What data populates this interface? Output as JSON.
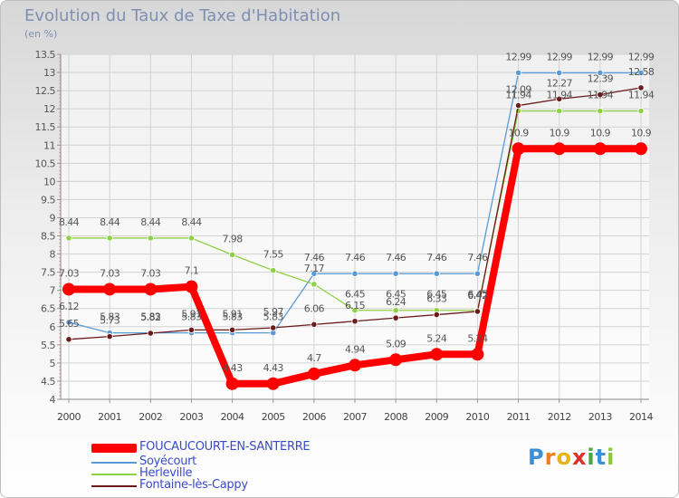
{
  "header": {
    "title": "Evolution du Taux de Taxe d'Habitation",
    "unit": "(en %)"
  },
  "chart_data": {
    "type": "line",
    "x": [
      "2000",
      "2001",
      "2002",
      "2003",
      "2004",
      "2005",
      "2006",
      "2007",
      "2008",
      "2009",
      "2010",
      "2011",
      "2012",
      "2013",
      "2014"
    ],
    "ylim": [
      4,
      13.5
    ],
    "yticks": [
      "4",
      "4.5",
      "5",
      "5.5",
      "6",
      "6.5",
      "7",
      "7.5",
      "8",
      "8.5",
      "9",
      "9.5",
      "10",
      "10.5",
      "11",
      "11.5",
      "12",
      "12.5",
      "13",
      "13.5"
    ],
    "grid": true,
    "legend_position": "bottom",
    "series": [
      {
        "name": "FOUCAUCOURT-EN-SANTERRE",
        "color": "#ff0000",
        "values": [
          7.03,
          7.03,
          7.03,
          7.1,
          4.43,
          4.43,
          4.7,
          4.94,
          5.09,
          5.24,
          5.24,
          10.9,
          10.9,
          10.9,
          10.9
        ],
        "labels": [
          "7.03",
          "7.03",
          "7.03",
          "7.1",
          "4.43",
          "4.43",
          "4.7",
          "4.94",
          "5.09",
          "5.24",
          "5.24",
          "10.9",
          "10.9",
          "10.9",
          "10.9"
        ]
      },
      {
        "name": "Soyécourt",
        "color": "#5b9bd5",
        "values": [
          6.12,
          5.83,
          5.83,
          5.83,
          5.83,
          5.83,
          7.46,
          7.46,
          7.46,
          7.46,
          7.46,
          12.99,
          12.99,
          12.99,
          12.99
        ],
        "labels": [
          "6.12",
          "5.83",
          "5.83",
          "5.83",
          "5.83",
          "5.83",
          "7.46",
          "7.46",
          "7.46",
          "7.46",
          "7.46",
          "12.99",
          "12.99",
          "12.99",
          "12.99"
        ]
      },
      {
        "name": "Herleville",
        "color": "#8ed144",
        "values": [
          8.44,
          8.44,
          8.44,
          8.44,
          7.98,
          7.55,
          7.17,
          6.45,
          6.45,
          6.45,
          6.45,
          11.94,
          11.94,
          11.94,
          11.94
        ],
        "labels": [
          "8.44",
          "8.44",
          "8.44",
          "8.44",
          "7.98",
          "7.55",
          "7.17",
          "6.45",
          "6.45",
          "6.45",
          "6.45",
          "11.94",
          "11.94",
          "11.94",
          "11.94"
        ]
      },
      {
        "name": "Fontaine-lès-Cappy",
        "color": "#6b1b1b",
        "values": [
          5.65,
          5.73,
          5.82,
          5.91,
          5.91,
          5.97,
          6.06,
          6.15,
          6.24,
          6.33,
          6.42,
          12.09,
          12.27,
          12.39,
          12.58
        ],
        "labels": [
          "5.65",
          "5.73",
          "5.82",
          "5.91",
          "5.91",
          "5.97",
          "6.06",
          "6.15",
          "6.24",
          "6.33",
          "6.42",
          "12.09",
          "12.27",
          "12.39",
          "12.58"
        ]
      }
    ]
  },
  "logo": {
    "text": "Proxiti",
    "letters": [
      "P",
      "r",
      "o",
      "x",
      "i",
      "t",
      "i"
    ],
    "colors": [
      "#3a8fd6",
      "#f07d1a",
      "#e5b51a",
      "#d8322a",
      "#49a640",
      "#3a8fd6",
      "#8ec63f"
    ]
  }
}
